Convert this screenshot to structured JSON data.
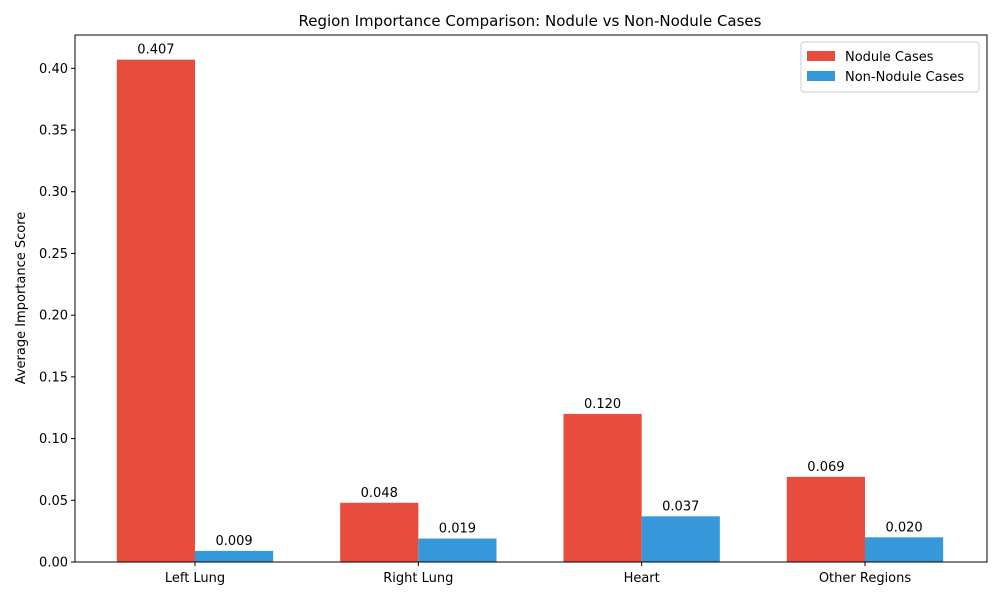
{
  "chart_data": {
    "type": "bar",
    "title": "Region Importance Comparison: Nodule vs Non-Nodule Cases",
    "xlabel": "",
    "ylabel": "Average Importance Score",
    "categories": [
      "Left Lung",
      "Right Lung",
      "Heart",
      "Other Regions"
    ],
    "series": [
      {
        "name": "Nodule Cases",
        "color": "#e74c3c",
        "values": [
          0.407,
          0.048,
          0.12,
          0.069
        ],
        "labels": [
          "0.407",
          "0.048",
          "0.120",
          "0.069"
        ]
      },
      {
        "name": "Non-Nodule Cases",
        "color": "#3498db",
        "values": [
          0.009,
          0.019,
          0.037,
          0.02
        ],
        "labels": [
          "0.009",
          "0.019",
          "0.037",
          "0.020"
        ]
      }
    ],
    "ylim": [
      0,
      0.427
    ],
    "yticks": [
      0.0,
      0.05,
      0.1,
      0.15,
      0.2,
      0.25,
      0.3,
      0.35,
      0.4
    ],
    "ytick_labels": [
      "0.00",
      "0.05",
      "0.10",
      "0.15",
      "0.20",
      "0.25",
      "0.30",
      "0.35",
      "0.40"
    ],
    "grid": false,
    "legend_position": "top-right"
  }
}
